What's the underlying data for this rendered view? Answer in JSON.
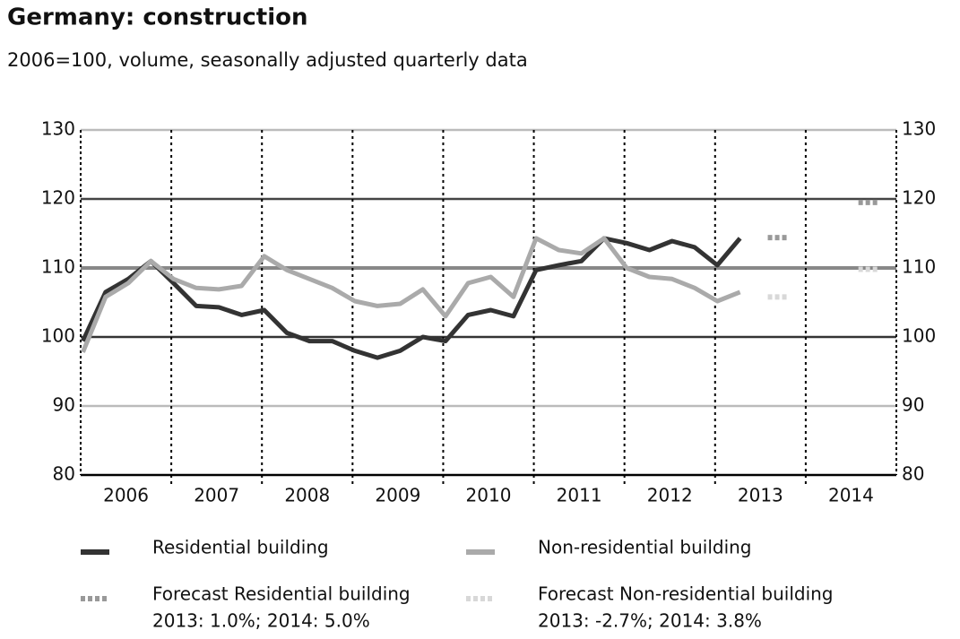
{
  "chart_data": {
    "type": "line",
    "title": "Germany: construction",
    "subtitle": "2006=100, volume, seasonally adjusted quarterly data",
    "categories": [
      "2006",
      "2007",
      "2008",
      "2009",
      "2010",
      "2011",
      "2012",
      "2013",
      "2014"
    ],
    "ylim": [
      80,
      130
    ],
    "yticks": [
      80,
      90,
      100,
      110,
      120,
      130
    ],
    "grid": true,
    "series": [
      {
        "name": "Residential building",
        "color": "#333333",
        "values": [
          [
            99.4,
            106.5,
            108.4,
            111
          ],
          [
            107.8,
            104.5,
            104.3,
            103.2
          ],
          [
            103.9,
            100.6,
            99.4,
            99.4
          ],
          [
            98,
            97,
            98,
            100
          ],
          [
            99.4,
            103.2,
            103.9,
            103
          ],
          [
            109.7,
            110.4,
            111,
            114.3
          ],
          [
            113.6,
            112.6,
            113.9,
            113
          ],
          [
            110.4,
            114.3,
            null,
            null
          ],
          null
        ]
      },
      {
        "name": "Non-residential building",
        "color": "#aaaaaa",
        "values": [
          [
            97.8,
            105.8,
            107.8,
            111
          ],
          [
            108.4,
            107.1,
            106.9,
            107.4
          ],
          [
            111.7,
            109.7,
            108.4,
            107.1
          ],
          [
            105.2,
            104.5,
            104.8,
            106.9
          ],
          [
            103,
            107.8,
            108.7,
            105.8
          ],
          [
            114.3,
            112.6,
            112.1,
            114.3
          ],
          [
            110,
            108.7,
            108.4,
            107.1
          ],
          [
            105.2,
            106.5,
            null,
            null
          ],
          null
        ]
      },
      {
        "name": "Forecast Residential building",
        "note": "2013: 1.0%; 2014: 5.0%",
        "color": "#999999",
        "forecast": true,
        "values": [
          null,
          null,
          null,
          null,
          null,
          null,
          null,
          114.4,
          119.5
        ]
      },
      {
        "name": "Forecast Non-residential building",
        "note": "2013: -2.7%; 2014: 3.8%",
        "color": "#d8d8d8",
        "forecast": true,
        "values": [
          null,
          null,
          null,
          null,
          null,
          null,
          null,
          105.8,
          109.8
        ]
      }
    ]
  }
}
